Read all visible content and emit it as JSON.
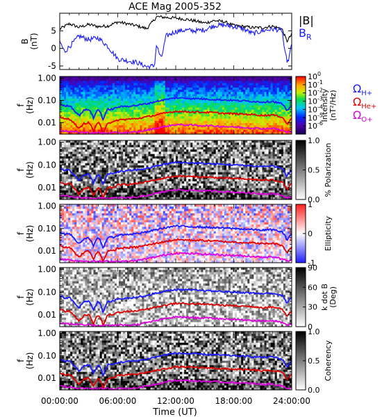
{
  "chart_data": {
    "type": "spectrogram",
    "title": "ACE Mag 2005-352",
    "x_axis": {
      "label": "Time (UT)",
      "range_hours": [
        0,
        24
      ],
      "ticks": [
        {
          "hour": 0,
          "label": "00:00:00"
        },
        {
          "hour": 6,
          "label": "06:00:00"
        },
        {
          "hour": 12,
          "label": "12:00:00"
        },
        {
          "hour": 18,
          "label": "18:00:00"
        },
        {
          "hour": 24,
          "label": "24:00:00"
        }
      ]
    },
    "panels": [
      {
        "kind": "line",
        "ylabel": [
          "B",
          "(nT)"
        ],
        "ylim": [
          -6,
          10
        ],
        "yticks": [
          {
            "v": 5,
            "label": "5"
          },
          {
            "v": 0,
            "label": "0"
          },
          {
            "v": -5,
            "label": "-5"
          }
        ],
        "legend": [
          {
            "text": "|B|",
            "sub": "",
            "color": "#000000"
          },
          {
            "text": "B",
            "sub": "R",
            "color": "#1a1aff"
          }
        ],
        "series": [
          {
            "name": "|B|",
            "color": "#000000",
            "hours": [
              0,
              1,
              2,
              3,
              4,
              5,
              6,
              7,
              8,
              9,
              9.8,
              10,
              11,
              12,
              13,
              14,
              15,
              16,
              17,
              18,
              19,
              20,
              21,
              22,
              23,
              23.5,
              24
            ],
            "values": [
              5.5,
              7,
              6,
              6.8,
              6.2,
              6.4,
              7.5,
              7,
              6.4,
              5.6,
              8.2,
              9,
              8.8,
              8.6,
              8.3,
              7.8,
              7.2,
              7.9,
              7.6,
              6.5,
              6.2,
              5.9,
              5.9,
              6.3,
              5.5,
              2,
              4
            ]
          },
          {
            "name": "B_R",
            "color": "#1a1aff",
            "hours": [
              0,
              0.5,
              1,
              2,
              3,
              4,
              5,
              6,
              7,
              8,
              9,
              9.8,
              10,
              10.5,
              11,
              12,
              13,
              14,
              15,
              16,
              17,
              18,
              19,
              20,
              21,
              22,
              23,
              23.3,
              23.6,
              24
            ],
            "values": [
              2,
              -1,
              0.5,
              3.5,
              2.5,
              3,
              0.5,
              -3,
              -3.5,
              -4,
              -5.2,
              -5,
              1,
              -3,
              3.5,
              4.8,
              5.2,
              5,
              5.3,
              6.5,
              6.6,
              6.2,
              5.5,
              4.2,
              5,
              5.5,
              5.2,
              -1.5,
              -4,
              1
            ]
          }
        ]
      },
      {
        "kind": "spectrogram",
        "ylabel": [
          "f",
          "(Hz)"
        ],
        "colorbar": {
          "palette": "rainbow",
          "label": [
            "Intensity",
            "(nT²/Hz)"
          ],
          "ticks": [
            {
              "label": "10",
              "exp": "0",
              "frac": 1.0
            },
            {
              "label": "10",
              "exp": "-1",
              "frac": 0.857
            },
            {
              "label": "10",
              "exp": "-2",
              "frac": 0.714
            },
            {
              "label": "10",
              "exp": "-3",
              "frac": 0.571
            },
            {
              "label": "10",
              "exp": "-4",
              "frac": 0.429
            },
            {
              "label": "10",
              "exp": "-5",
              "frac": 0.286
            },
            {
              "label": "10",
              "exp": "-6",
              "frac": 0.143
            }
          ]
        },
        "legend": [
          {
            "text": "Ω",
            "sub": "H+",
            "color": "#1a1aff"
          },
          {
            "text": "Ω",
            "sub": "He+",
            "color": "#e00000"
          },
          {
            "text": "Ω",
            "sub": "O+",
            "color": "#e000e0"
          }
        ]
      },
      {
        "kind": "spectrogram",
        "ylabel": [
          "f",
          "(Hz)"
        ],
        "colorbar": {
          "palette": "gray",
          "label": [
            "% Polarization"
          ],
          "ticks": [
            {
              "label": "1.0",
              "frac": 1.0
            },
            {
              "label": "0.5",
              "frac": 0.5
            },
            {
              "label": "0.0",
              "frac": 0.0
            }
          ]
        }
      },
      {
        "kind": "spectrogram",
        "ylabel": [
          "f",
          "(Hz)"
        ],
        "colorbar": {
          "palette": "bluered",
          "label": [
            "Ellipticity"
          ],
          "ticks": [
            {
              "label": "1",
              "frac": 1.0
            },
            {
              "label": "0",
              "frac": 0.5
            },
            {
              "label": "-1",
              "frac": 0.0
            }
          ]
        }
      },
      {
        "kind": "spectrogram",
        "ylabel": [
          "f",
          "(Hz)"
        ],
        "colorbar": {
          "palette": "gray",
          "label": [
            "k dot B",
            "(Deg)"
          ],
          "ticks": [
            {
              "label": "90",
              "frac": 1.0
            },
            {
              "label": "60",
              "frac": 0.667
            },
            {
              "label": "30",
              "frac": 0.333
            },
            {
              "label": "0",
              "frac": 0.0
            }
          ]
        }
      },
      {
        "kind": "spectrogram",
        "ylabel": [
          "f",
          "(Hz)"
        ],
        "colorbar": {
          "palette": "gray",
          "label": [
            "Coherency"
          ],
          "ticks": [
            {
              "label": "1.0",
              "frac": 1.0
            },
            {
              "label": "0.5",
              "frac": 0.5
            },
            {
              "label": "0.0",
              "frac": 0.0
            }
          ]
        }
      }
    ],
    "frequency_axis": {
      "scale": "log",
      "range_hz": [
        0.003,
        1.2
      ],
      "ticks": [
        {
          "v": 1.0,
          "label": "1.00"
        },
        {
          "v": 0.1,
          "label": "0.10"
        },
        {
          "v": 0.01,
          "label": "0.01"
        }
      ]
    },
    "gyrofrequency_lines": [
      {
        "name": "Ω_H+",
        "color": "#1a1aff",
        "hours": [
          0,
          0.5,
          1,
          1.5,
          2,
          2.5,
          3,
          3.5,
          4,
          4.5,
          5,
          5.5,
          6,
          7,
          8,
          9,
          10,
          11,
          12,
          13,
          14,
          15,
          16,
          17,
          18,
          19,
          20,
          21,
          22,
          23,
          23.5,
          24
        ],
        "values": [
          0.07,
          0.055,
          0.06,
          0.035,
          0.02,
          0.035,
          0.04,
          0.015,
          0.04,
          0.012,
          0.04,
          0.04,
          0.05,
          0.055,
          0.06,
          0.07,
          0.09,
          0.11,
          0.13,
          0.125,
          0.12,
          0.115,
          0.11,
          0.105,
          0.1,
          0.095,
          0.09,
          0.085,
          0.09,
          0.07,
          0.03,
          0.06
        ]
      },
      {
        "name": "Ω_He+",
        "color": "#e00000",
        "hours": [
          0,
          0.5,
          1,
          1.5,
          2,
          2.5,
          3,
          3.5,
          4,
          4.5,
          5,
          5.5,
          6,
          7,
          8,
          9,
          10,
          11,
          12,
          13,
          14,
          15,
          16,
          17,
          18,
          19,
          20,
          21,
          22,
          23,
          23.5,
          24
        ],
        "values": [
          0.018,
          0.014,
          0.015,
          0.009,
          0.005,
          0.009,
          0.01,
          0.004,
          0.01,
          0.003,
          0.01,
          0.01,
          0.013,
          0.014,
          0.015,
          0.018,
          0.022,
          0.027,
          0.032,
          0.031,
          0.03,
          0.029,
          0.028,
          0.026,
          0.025,
          0.024,
          0.023,
          0.021,
          0.022,
          0.018,
          0.008,
          0.015
        ]
      },
      {
        "name": "Ω_O+",
        "color": "#e000e0",
        "hours": [
          0,
          1,
          2,
          3,
          4,
          5,
          6,
          7,
          8,
          9,
          10,
          11,
          12,
          13,
          14,
          15,
          16,
          17,
          18,
          19,
          20,
          21,
          22,
          23,
          23.5,
          24
        ],
        "values": [
          0.0045,
          0.004,
          0.0036,
          0.0035,
          0.0034,
          0.0034,
          0.0035,
          0.0035,
          0.0037,
          0.0045,
          0.0055,
          0.0068,
          0.008,
          0.0078,
          0.0075,
          0.0072,
          0.007,
          0.0066,
          0.0063,
          0.006,
          0.0057,
          0.0053,
          0.0055,
          0.0045,
          0.0035,
          0.004
        ]
      }
    ]
  }
}
